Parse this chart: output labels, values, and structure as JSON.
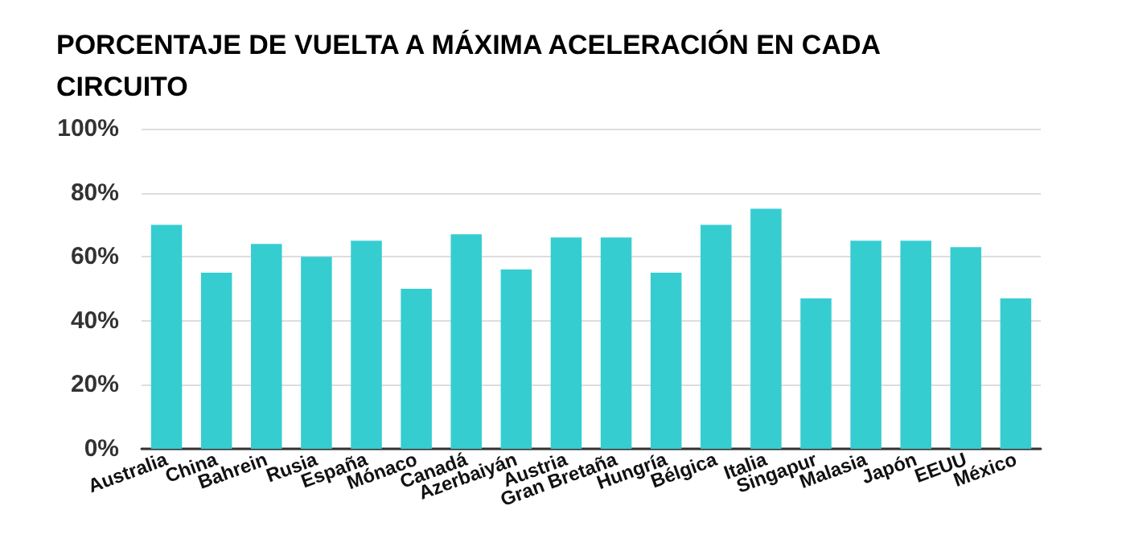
{
  "chart_data": {
    "type": "bar",
    "title": "PORCENTAJE DE VUELTA A MÁXIMA ACELERACIÓN EN CADA CIRCUITO",
    "categories": [
      "Australia",
      "China",
      "Bahrein",
      "Rusia",
      "España",
      "Mónaco",
      "Canadá",
      "Azerbaiyán",
      "Austria",
      "Gran Bretaña",
      "Hungría",
      "Bélgica",
      "Italia",
      "Singapur",
      "Malasia",
      "Japón",
      "EEUU",
      "México"
    ],
    "values": [
      70,
      55,
      64,
      60,
      65,
      50,
      67,
      56,
      66,
      66,
      55,
      70,
      75,
      47,
      65,
      65,
      63,
      47
    ],
    "color": "#36cdd1",
    "ylim": [
      0,
      100
    ],
    "yticks": [
      {
        "value": 0,
        "label": "0%"
      },
      {
        "value": 20,
        "label": "20%"
      },
      {
        "value": 40,
        "label": "40%"
      },
      {
        "value": 60,
        "label": "60%"
      },
      {
        "value": 80,
        "label": "80%"
      },
      {
        "value": 100,
        "label": "100%"
      }
    ],
    "grid": "y"
  }
}
